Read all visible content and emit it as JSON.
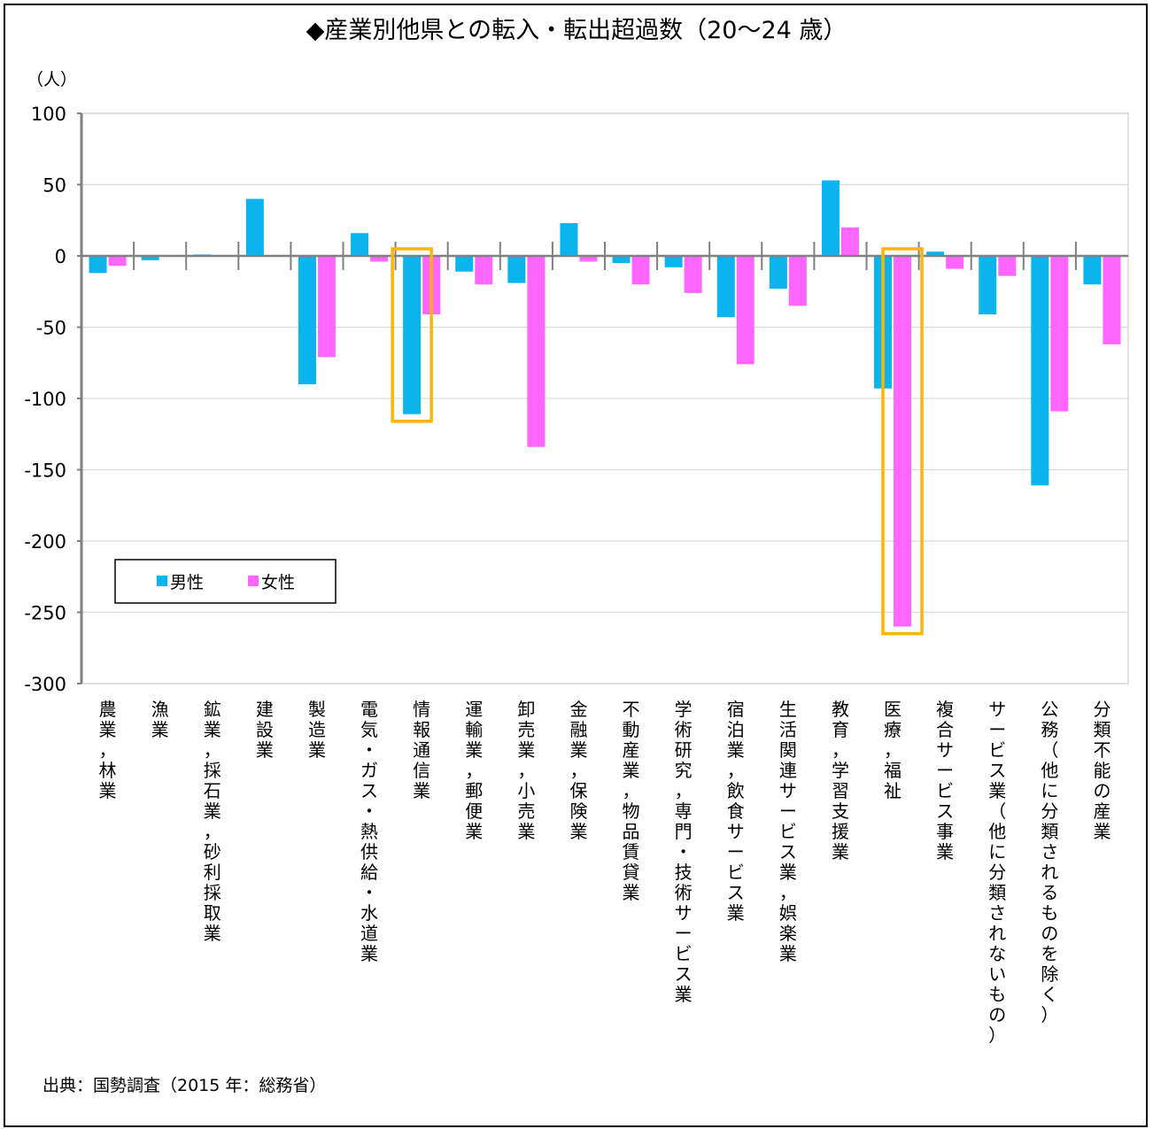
{
  "source_note": "出典：国勢調査（2015 年：総務省）",
  "colors": {
    "male": "#0BB4EC",
    "female": "#FF66FF",
    "highlight": "#FFB400",
    "axis": "#808080",
    "grid": "#D9D9D9"
  },
  "chart_data": {
    "type": "bar",
    "title": "◆産業別他県との転入・転出超過数（20〜24 歳）",
    "ylabel": "（人）",
    "ylim": [
      -300,
      100
    ],
    "yticks": [
      100,
      50,
      0,
      -50,
      -100,
      -150,
      -200,
      -250,
      -300
    ],
    "ytick_labels": [
      "100",
      "50",
      "0",
      "-50",
      "-100",
      "-150",
      "-200",
      "-250",
      "-300"
    ],
    "grid": true,
    "legend_position": "lower-left",
    "categories": [
      "農業，林業",
      "漁業",
      "鉱業，採石業，砂利採取業",
      "建設業",
      "製造業",
      "電気・ガス・熱供給・水道業",
      "情報通信業",
      "運輸業，郵便業",
      "卸売業，小売業",
      "金融業，保険業",
      "不動産業，物品賃貸業",
      "学術研究，専門・技術サービス業",
      "宿泊業，飲食サービス業",
      "生活関連サービス業，娯楽業",
      "教育，学習支援業",
      "医療，福祉",
      "複合サービス事業",
      "サービス業（他に分類されないもの）",
      "公務（他に分類されるものを除く）",
      "分類不能の産業"
    ],
    "series": [
      {
        "name": "男性",
        "values": [
          -12,
          -3,
          1,
          40,
          -90,
          16,
          -111,
          -11,
          -19,
          23,
          -5,
          -8,
          -43,
          -23,
          53,
          -93,
          3,
          -41,
          -161,
          -20
        ]
      },
      {
        "name": "女性",
        "values": [
          -7,
          0,
          0,
          0,
          -71,
          -4,
          -41,
          -20,
          -134,
          -4,
          -20,
          -26,
          -76,
          -35,
          20,
          -260,
          -9,
          -14,
          -109,
          -62
        ]
      }
    ],
    "highlighted_categories": [
      6,
      15
    ]
  }
}
